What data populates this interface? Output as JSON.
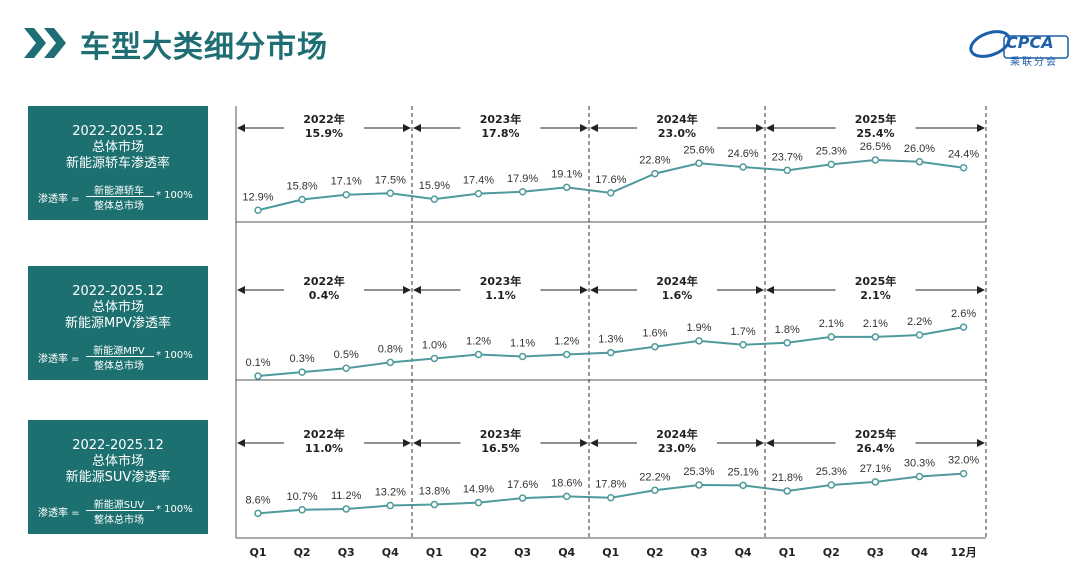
{
  "title": "车型大类细分市场",
  "logo": {
    "text": "CPCA",
    "sub": "乘联分会"
  },
  "colors": {
    "line": "#4f9a9c",
    "box": "#1c7170",
    "title": "#1e6e73"
  },
  "x_labels": [
    "Q1",
    "Q2",
    "Q3",
    "Q4",
    "Q1",
    "Q2",
    "Q3",
    "Q4",
    "Q1",
    "Q2",
    "Q3",
    "Q4",
    "Q1",
    "Q2",
    "Q3",
    "Q4",
    "12月"
  ],
  "panels": [
    {
      "box": {
        "line1": "2022-2025.12",
        "line2": "总体市场",
        "line3": "新能源轿车渗透率",
        "formula_lhs": "渗透率 =",
        "formula_num": "新能源轿车",
        "formula_den": "整体总市场",
        "formula_mul": "* 100%"
      },
      "years": [
        {
          "year": "2022年",
          "value": "15.9%"
        },
        {
          "year": "2023年",
          "value": "17.8%"
        },
        {
          "year": "2024年",
          "value": "23.0%"
        },
        {
          "year": "2025年",
          "value": "25.4%"
        }
      ]
    },
    {
      "box": {
        "line1": "2022-2025.12",
        "line2": "总体市场",
        "line3": "新能源MPV渗透率",
        "formula_lhs": "渗透率 =",
        "formula_num": "新能源MPV",
        "formula_den": "整体总市场",
        "formula_mul": "* 100%"
      },
      "years": [
        {
          "year": "2022年",
          "value": "0.4%"
        },
        {
          "year": "2023年",
          "value": "1.1%"
        },
        {
          "year": "2024年",
          "value": "1.6%"
        },
        {
          "year": "2025年",
          "value": "2.1%"
        }
      ]
    },
    {
      "box": {
        "line1": "2022-2025.12",
        "line2": "总体市场",
        "line3": "新能源SUV渗透率",
        "formula_lhs": "渗透率 =",
        "formula_num": "新能源SUV",
        "formula_den": "整体总市场",
        "formula_mul": "* 100%"
      },
      "years": [
        {
          "year": "2022年",
          "value": "11.0%"
        },
        {
          "year": "2023年",
          "value": "16.5%"
        },
        {
          "year": "2024年",
          "value": "23.0%"
        },
        {
          "year": "2025年",
          "value": "26.4%"
        }
      ]
    }
  ],
  "chart_data": [
    {
      "type": "line",
      "categories": [
        "Q1",
        "Q2",
        "Q3",
        "Q4",
        "Q1",
        "Q2",
        "Q3",
        "Q4",
        "Q1",
        "Q2",
        "Q3",
        "Q4",
        "Q1",
        "Q2",
        "Q3",
        "Q4",
        "12月"
      ],
      "series": [
        {
          "values": [
            12.9,
            15.8,
            17.1,
            17.5,
            15.9,
            17.4,
            17.9,
            19.1,
            17.6,
            22.8,
            25.6,
            24.6,
            23.7,
            25.3,
            26.5,
            26.0,
            24.4
          ]
        }
      ],
      "labels": [
        "12.9%",
        "15.8%",
        "17.1%",
        "17.5%",
        "15.9%",
        "17.4%",
        "17.9%",
        "19.1%",
        "17.6%",
        "22.8%",
        "25.6%",
        "24.6%",
        "23.7%",
        "25.3%",
        "26.5%",
        "26.0%",
        "24.4%"
      ],
      "ylim": [
        0,
        40
      ]
    },
    {
      "type": "line",
      "categories": [
        "Q1",
        "Q2",
        "Q3",
        "Q4",
        "Q1",
        "Q2",
        "Q3",
        "Q4",
        "Q1",
        "Q2",
        "Q3",
        "Q4",
        "Q1",
        "Q2",
        "Q3",
        "Q4",
        "12月"
      ],
      "series": [
        {
          "values": [
            0.1,
            0.3,
            0.5,
            0.8,
            1.0,
            1.2,
            1.1,
            1.2,
            1.3,
            1.6,
            1.9,
            1.7,
            1.8,
            2.1,
            2.1,
            2.2,
            2.6
          ]
        }
      ],
      "labels": [
        "0.1%",
        "0.3%",
        "0.5%",
        "0.8%",
        "1.0%",
        "1.2%",
        "1.1%",
        "1.2%",
        "1.3%",
        "1.6%",
        "1.9%",
        "1.7%",
        "1.8%",
        "2.1%",
        "2.1%",
        "2.2%",
        "2.6%"
      ],
      "ylim": [
        0,
        4.5
      ]
    },
    {
      "type": "line",
      "categories": [
        "Q1",
        "Q2",
        "Q3",
        "Q4",
        "Q1",
        "Q2",
        "Q3",
        "Q4",
        "Q1",
        "Q2",
        "Q3",
        "Q4",
        "Q1",
        "Q2",
        "Q3",
        "Q4",
        "12月"
      ],
      "series": [
        {
          "values": [
            8.6,
            10.7,
            11.2,
            13.2,
            13.8,
            14.9,
            17.6,
            18.6,
            17.8,
            22.2,
            25.3,
            25.1,
            21.8,
            25.3,
            27.1,
            30.3,
            32.0
          ]
        }
      ],
      "labels": [
        "8.6%",
        "10.7%",
        "11.2%",
        "13.2%",
        "13.8%",
        "14.9%",
        "17.6%",
        "18.6%",
        "17.8%",
        "22.2%",
        "25.3%",
        "25.1%",
        "21.8%",
        "25.3%",
        "27.1%",
        "30.3%",
        "32.0%"
      ],
      "ylim": [
        0,
        50
      ]
    }
  ]
}
